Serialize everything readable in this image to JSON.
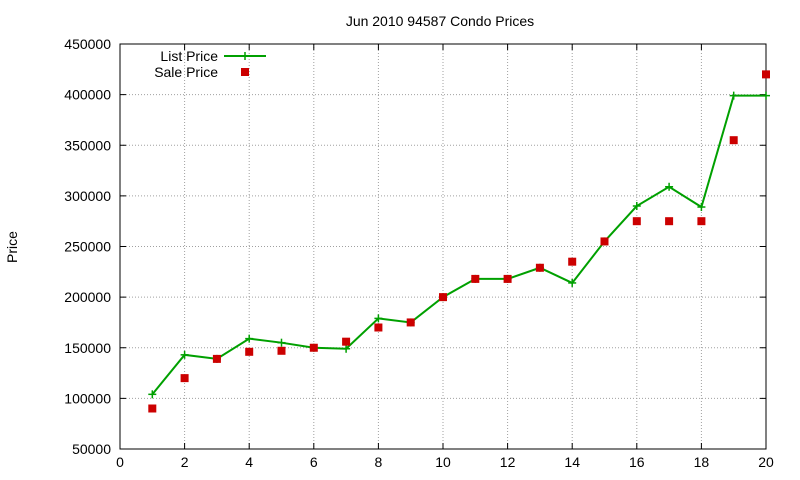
{
  "chart_data": {
    "type": "line",
    "title": "Jun 2010 94587 Condo Prices",
    "xlabel": "",
    "ylabel": "Price",
    "xlim": [
      0,
      20
    ],
    "ylim": [
      50000,
      450000
    ],
    "xticks": [
      0,
      2,
      4,
      6,
      8,
      10,
      12,
      14,
      16,
      18,
      20
    ],
    "yticks": [
      50000,
      100000,
      150000,
      200000,
      250000,
      300000,
      350000,
      400000,
      450000
    ],
    "grid": true,
    "legend_position": "top-left",
    "series": [
      {
        "name": "List Price",
        "style": "line+cross",
        "color": "#00a000",
        "x": [
          1,
          2,
          3,
          4,
          5,
          6,
          7,
          8,
          9,
          10,
          11,
          12,
          13,
          14,
          15,
          16,
          17,
          18,
          19,
          20
        ],
        "y": [
          104000,
          143000,
          139000,
          159000,
          155000,
          150000,
          149000,
          179000,
          175000,
          200000,
          218000,
          218000,
          229000,
          214000,
          255000,
          290000,
          309000,
          289000,
          399000,
          399000
        ]
      },
      {
        "name": "Sale Price",
        "style": "square",
        "color": "#cc0000",
        "x": [
          1,
          2,
          3,
          4,
          5,
          6,
          7,
          8,
          9,
          10,
          11,
          12,
          13,
          14,
          15,
          16,
          17,
          18,
          19,
          20
        ],
        "y": [
          90000,
          120000,
          139000,
          146000,
          147000,
          150000,
          156000,
          170000,
          175000,
          200000,
          218000,
          218000,
          229000,
          235000,
          255000,
          275000,
          275000,
          275000,
          355000,
          420000
        ]
      }
    ]
  }
}
